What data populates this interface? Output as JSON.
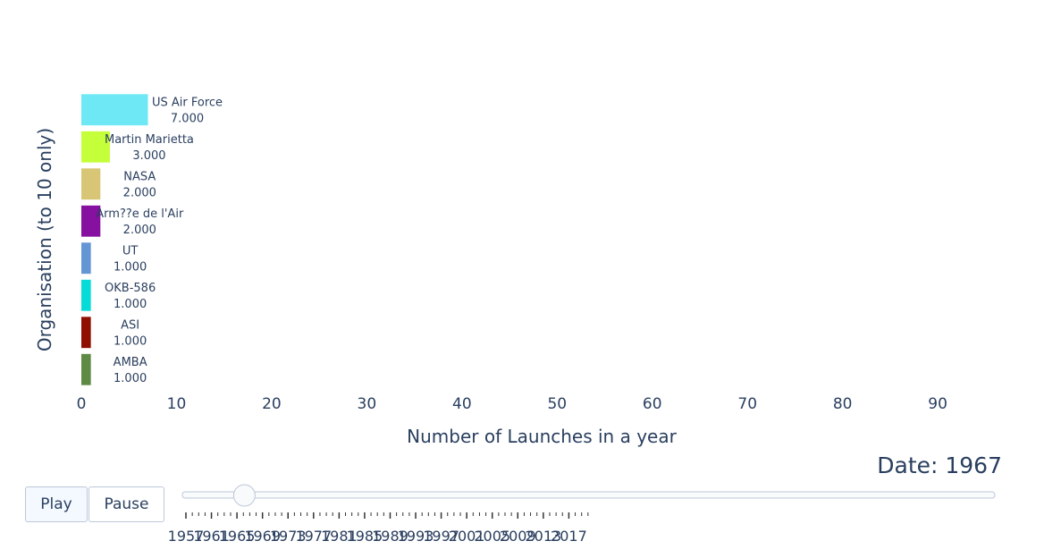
{
  "chart_data": {
    "type": "bar",
    "orientation": "horizontal",
    "categories": [
      "US Air Force",
      "Martin Marietta",
      "NASA",
      "Arm??e de l'Air",
      "UT",
      "OKB-586",
      "ASI",
      "AMBA"
    ],
    "values": [
      7,
      3,
      2,
      2,
      1,
      1,
      1,
      1
    ],
    "value_labels": [
      "7.000",
      "3.000",
      "2.000",
      "2.000",
      "1.000",
      "1.000",
      "1.000",
      "1.000"
    ],
    "colors": [
      "#6ee8f5",
      "#c4ff3a",
      "#d8c676",
      "#8610a0",
      "#6495d4",
      "#05dcd8",
      "#8f1000",
      "#5e8a44"
    ],
    "xlabel": "Number of Launches in a year",
    "ylabel": "Organisation (to 10 only)",
    "xlim": [
      0,
      96
    ],
    "xticks": [
      0,
      10,
      20,
      30,
      40,
      50,
      60,
      70,
      80,
      90
    ],
    "grid": false
  },
  "date_label": "Date: 1967",
  "controls": {
    "play_label": "Play",
    "pause_label": "Pause"
  },
  "slider": {
    "years": [
      1957,
      1958,
      1959,
      1960,
      1961,
      1962,
      1963,
      1964,
      1965,
      1966,
      1967,
      1968,
      1969,
      1970,
      1971,
      1972,
      1973,
      1974,
      1975,
      1976,
      1977,
      1978,
      1979,
      1980,
      1981,
      1982,
      1983,
      1984,
      1985,
      1986,
      1987,
      1988,
      1989,
      1990,
      1991,
      1992,
      1993,
      1994,
      1995,
      1996,
      1997,
      1998,
      1999,
      2000,
      2001,
      2002,
      2003,
      2004,
      2005,
      2006,
      2007,
      2008,
      2009,
      2010,
      2011,
      2012,
      2013,
      2014,
      2015,
      2016,
      2017,
      2018,
      2019,
      2020
    ],
    "labels": [
      "1957",
      "1961",
      "1965",
      "1969",
      "1973",
      "1977",
      "1981",
      "1985",
      "1989",
      "1993",
      "1997",
      "2001",
      "2005",
      "2009",
      "2013",
      "2017"
    ],
    "current": 1967
  }
}
